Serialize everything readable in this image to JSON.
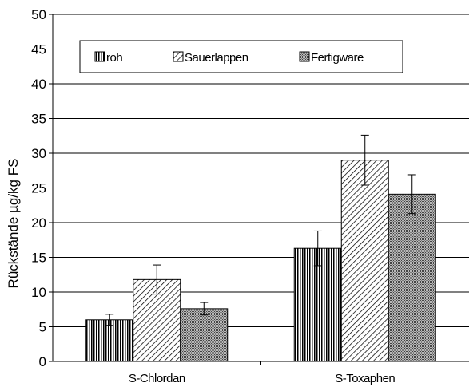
{
  "chart_data": {
    "type": "bar",
    "title": "",
    "xlabel": "",
    "ylabel": "Rückstände µg/kg FS",
    "ylim": [
      0,
      50
    ],
    "yticks": [
      0,
      5,
      10,
      15,
      20,
      25,
      30,
      35,
      40,
      45,
      50
    ],
    "categories": [
      "S-Chlordan",
      "S-Toxaphen"
    ],
    "grid": true,
    "legend_position": "top",
    "series": [
      {
        "name": "roh",
        "values": [
          6.0,
          16.3
        ],
        "errors": [
          0.8,
          2.5
        ],
        "pattern": "vertical-lines"
      },
      {
        "name": "Sauerlappen",
        "values": [
          11.8,
          29.0
        ],
        "errors": [
          2.1,
          3.6
        ],
        "pattern": "diagonal-hatch"
      },
      {
        "name": "Fertigware",
        "values": [
          7.6,
          24.1
        ],
        "errors": [
          0.9,
          2.8
        ],
        "pattern": "dense-dots"
      }
    ]
  }
}
